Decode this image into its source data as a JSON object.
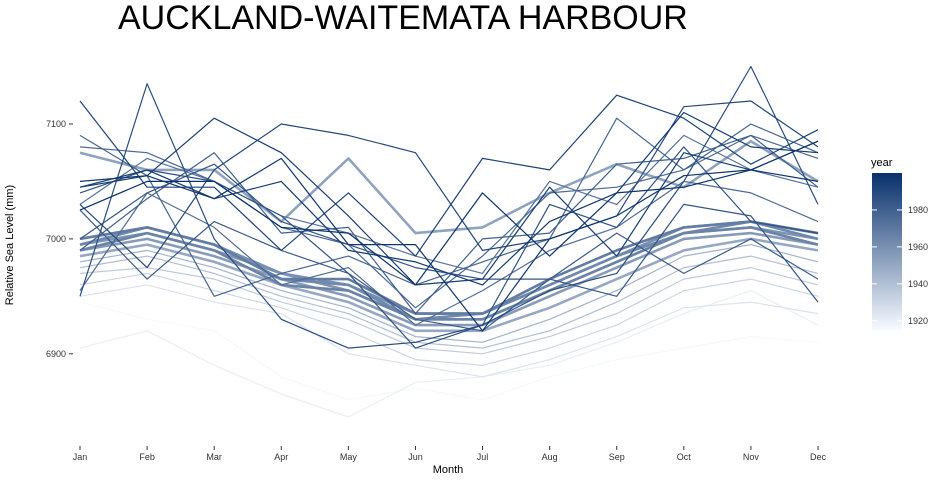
{
  "chart_data": {
    "type": "line",
    "title": "AUCKLAND-WAITEMATA HARBOUR",
    "xlabel": "Month",
    "ylabel": "Relative Sea Level (mm)",
    "categories": [
      "Jan",
      "Feb",
      "Mar",
      "Apr",
      "May",
      "Jun",
      "Jul",
      "Aug",
      "Sep",
      "Oct",
      "Nov",
      "Dec"
    ],
    "yticks": [
      6900,
      7000,
      7100
    ],
    "ylim": [
      6825,
      7160
    ],
    "grid": false,
    "legend": {
      "title": "year",
      "placement": "right",
      "ticks": [
        1920,
        1940,
        1960,
        1980
      ],
      "range": [
        1915,
        2000
      ],
      "color_low": "#f7fbff",
      "color_high": "#08306b"
    },
    "series": [
      {
        "year": 1916,
        "values": [
          6945,
          6930,
          6920,
          6880,
          6860,
          6870,
          6860,
          6880,
          6895,
          6905,
          6915,
          6910
        ]
      },
      {
        "year": 1920,
        "values": [
          6905,
          6920,
          6890,
          6865,
          6845,
          6875,
          6880,
          6890,
          6910,
          6935,
          6955,
          6925
        ]
      },
      {
        "year": 1925,
        "values": [
          6950,
          6960,
          6945,
          6935,
          6900,
          6890,
          6880,
          6895,
          6915,
          6940,
          6945,
          6935
        ]
      },
      {
        "year": 1930,
        "values": [
          6960,
          6970,
          6955,
          6940,
          6920,
          6895,
          6890,
          6905,
          6925,
          6955,
          6965,
          6950
        ]
      },
      {
        "year": 1935,
        "values": [
          6970,
          6975,
          6965,
          6945,
          6930,
          6905,
          6900,
          6915,
          6935,
          6965,
          6975,
          6960
        ]
      },
      {
        "year": 1940,
        "values": [
          6975,
          6985,
          6970,
          6950,
          6935,
          6910,
          6905,
          6920,
          6945,
          6975,
          6985,
          6970
        ]
      },
      {
        "year": 1945,
        "values": [
          6980,
          6990,
          6975,
          6955,
          6940,
          6915,
          6910,
          6930,
          6955,
          6985,
          6995,
          6980
        ]
      },
      {
        "year": 1950,
        "values": [
          6985,
          6995,
          6980,
          6960,
          6945,
          6920,
          6920,
          6940,
          6965,
          6990,
          7000,
          6990
        ]
      },
      {
        "year": 1952,
        "values": [
          7075,
          7060,
          7060,
          7015,
          7070,
          7005,
          7010,
          7040,
          7065,
          7045,
          7085,
          7050
        ]
      },
      {
        "year": 1955,
        "values": [
          6990,
          7000,
          6985,
          6965,
          6950,
          6925,
          6925,
          6950,
          6975,
          7000,
          7005,
          6995
        ]
      },
      {
        "year": 1958,
        "values": [
          6995,
          7005,
          6990,
          6970,
          6955,
          6930,
          6930,
          6955,
          6980,
          7005,
          7010,
          7000
        ]
      },
      {
        "year": 1960,
        "values": [
          7000,
          7010,
          6995,
          6970,
          6960,
          6935,
          6935,
          6960,
          6985,
          7010,
          7015,
          7005
        ]
      },
      {
        "year": 1963,
        "values": [
          6995,
          7010,
          6995,
          6965,
          6960,
          6930,
          6935,
          6960,
          6985,
          7005,
          7015,
          7000
        ]
      },
      {
        "year": 1965,
        "values": [
          6990,
          7005,
          6990,
          6960,
          6955,
          6930,
          6930,
          6955,
          6980,
          7005,
          7010,
          6995
        ]
      },
      {
        "year": 1968,
        "values": [
          7000,
          7010,
          6995,
          6965,
          6965,
          6935,
          6935,
          6965,
          6990,
          7010,
          7015,
          7005
        ]
      },
      {
        "year": 1972,
        "values": [
          7030,
          7070,
          7050,
          7020,
          7005,
          6985,
          6970,
          7050,
          7030,
          7090,
          7060,
          7045
        ]
      },
      {
        "year": 1975,
        "values": [
          6955,
          7040,
          7010,
          6960,
          6975,
          6925,
          6955,
          6990,
          7010,
          7050,
          7040,
          7015
        ]
      },
      {
        "year": 1976,
        "values": [
          7080,
          7075,
          7050,
          7010,
          6995,
          6940,
          6985,
          7040,
          7045,
          7060,
          7090,
          7070
        ]
      },
      {
        "year": 1978,
        "values": [
          7090,
          7055,
          6950,
          6970,
          6985,
          6960,
          6980,
          7000,
          7105,
          7060,
          7100,
          7075
        ]
      },
      {
        "year": 1980,
        "values": [
          6990,
          7035,
          7075,
          7005,
          7010,
          6935,
          7000,
          7005,
          7065,
          7070,
          7090,
          7045
        ]
      },
      {
        "year": 1982,
        "values": [
          7025,
          6965,
          7015,
          6990,
          6970,
          6930,
          6920,
          6965,
          7005,
          6970,
          7000,
          6965
        ]
      },
      {
        "year": 1984,
        "values": [
          7000,
          7040,
          7065,
          7015,
          6995,
          6975,
          6965,
          6965,
          6950,
          7030,
          7020,
          6945
        ]
      },
      {
        "year": 1986,
        "values": [
          7040,
          7060,
          7050,
          7020,
          6970,
          6905,
          6925,
          7030,
          7010,
          7080,
          7015,
          7005
        ]
      },
      {
        "year": 1988,
        "values": [
          6950,
          7135,
          7000,
          6930,
          6905,
          6910,
          6925,
          6955,
          6970,
          7050,
          7150,
          7030
        ]
      },
      {
        "year": 1990,
        "values": [
          7030,
          6975,
          7060,
          7100,
          7090,
          7075,
          6990,
          7000,
          7020,
          7115,
          7120,
          7080
        ]
      },
      {
        "year": 1992,
        "values": [
          7120,
          7045,
          7045,
          6990,
          7040,
          6985,
          7070,
          7060,
          7125,
          7105,
          7065,
          7095
        ]
      },
      {
        "year": 1994,
        "values": [
          7045,
          7055,
          7105,
          7075,
          7020,
          6960,
          6965,
          7045,
          6985,
          7075,
          7060,
          7085
        ]
      },
      {
        "year": 1996,
        "values": [
          7045,
          7060,
          7035,
          7050,
          6990,
          6980,
          6960,
          7015,
          7040,
          7110,
          7080,
          7075
        ]
      },
      {
        "year": 1998,
        "values": [
          7050,
          7055,
          7035,
          7070,
          6995,
          6995,
          6920,
          7000,
          7020,
          7055,
          7060,
          7085
        ]
      },
      {
        "year": 1999,
        "values": [
          7025,
          7050,
          7050,
          7010,
          7005,
          6960,
          7040,
          6985,
          7040,
          7045,
          7060,
          7050
        ]
      }
    ]
  }
}
